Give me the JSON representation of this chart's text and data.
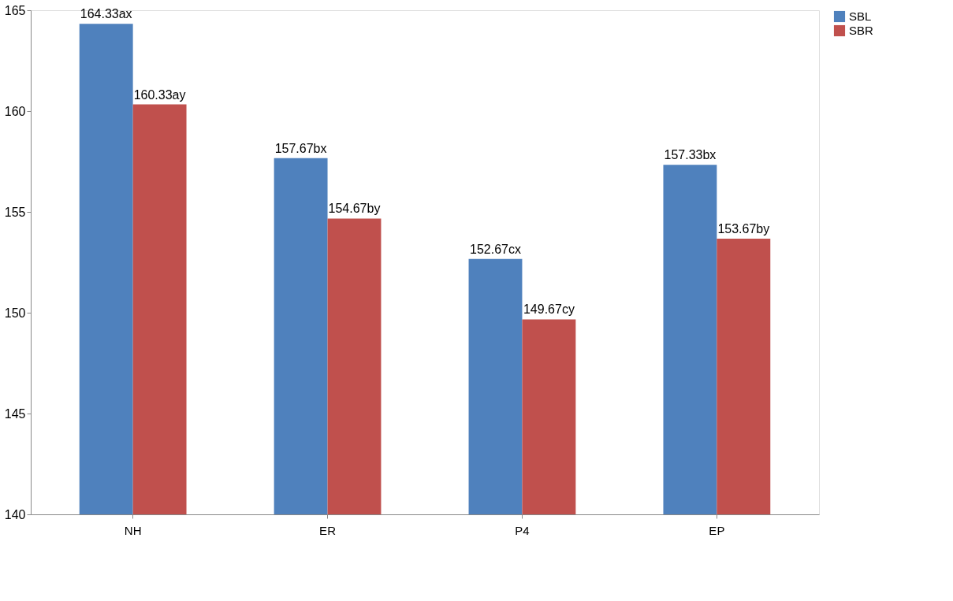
{
  "chart_data": {
    "type": "bar",
    "categories": [
      "NH",
      "ER",
      "P4",
      "EP"
    ],
    "series": [
      {
        "name": "SBL",
        "color": "#4f81bd",
        "values": [
          164.33,
          157.67,
          152.67,
          157.33
        ],
        "value_labels": [
          "164.33ax",
          "157.67bx",
          "152.67cx",
          "157.33bx"
        ]
      },
      {
        "name": "SBR",
        "color": "#c0504d",
        "values": [
          160.33,
          154.67,
          149.67,
          153.67
        ],
        "value_labels": [
          "160.33ay",
          "154.67by",
          "149.67cy",
          "153.67by"
        ]
      }
    ],
    "ylim": [
      140,
      165
    ],
    "yticks": [
      140,
      145,
      150,
      155,
      160,
      165
    ],
    "grid": false,
    "legend": "right"
  }
}
